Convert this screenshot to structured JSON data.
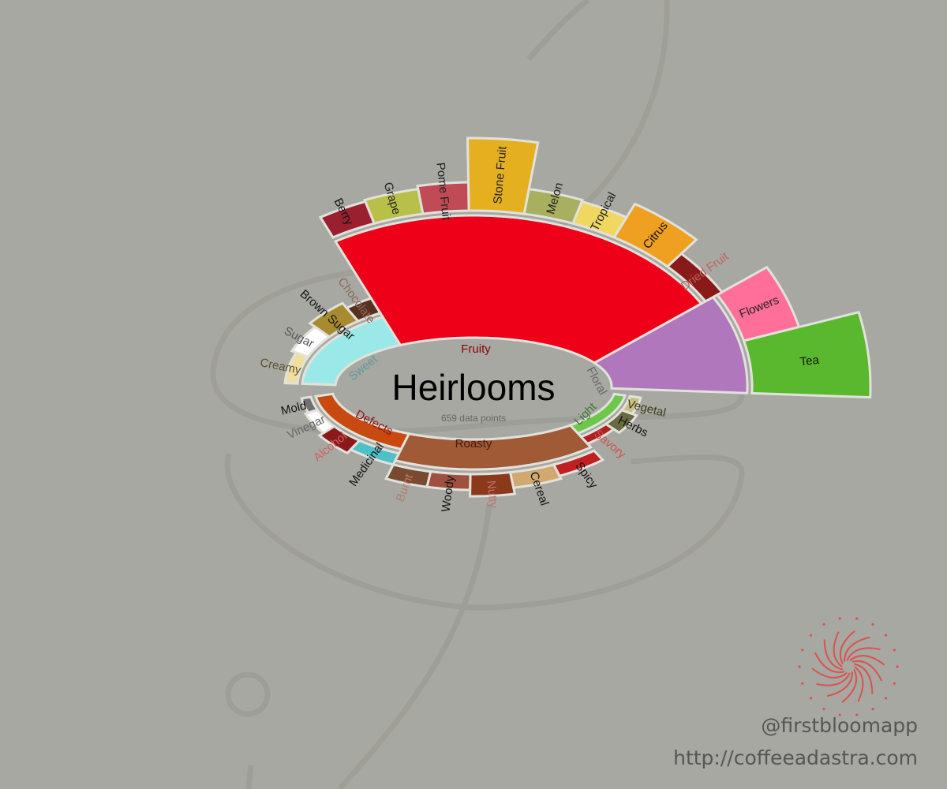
{
  "chart_data": {
    "type": "radial-bar",
    "title": "Heirlooms",
    "subtitle": "659 data points",
    "categories": [
      {
        "name": "Floral",
        "value": 172,
        "color": "#b077bc",
        "label_color": "#666666",
        "children": [
          {
            "name": "Flowers",
            "value": 72,
            "color": "#ff6f9a",
            "label_color": "#222222"
          },
          {
            "name": "Tea",
            "value": 150,
            "color": "#5ab82e",
            "label_color": "#111111"
          }
        ]
      },
      {
        "name": "Fruity",
        "value": 155,
        "color": "#ee0018",
        "label_color": "#8b0000",
        "children": [
          {
            "name": "Dried Fruit",
            "value": 24,
            "color": "#8a1a1a",
            "label_color": "#c06060"
          },
          {
            "name": "Citrus",
            "value": 50,
            "color": "#f0a020",
            "label_color": "#111111"
          },
          {
            "name": "Tropical",
            "value": 30,
            "color": "#f0d860",
            "label_color": "#222222"
          },
          {
            "name": "Melon",
            "value": 32,
            "color": "#a8b060",
            "label_color": "#222222"
          },
          {
            "name": "Stone Fruit",
            "value": 92,
            "color": "#e5b020",
            "label_color": "#222222"
          },
          {
            "name": "Pome Fruit",
            "value": 36,
            "color": "#c04a55",
            "label_color": "#222222"
          },
          {
            "name": "Grape",
            "value": 32,
            "color": "#b8c04a",
            "label_color": "#222222"
          },
          {
            "name": "Berry",
            "value": 30,
            "color": "#9a2030",
            "label_color": "#111111"
          }
        ]
      },
      {
        "name": "Sweet",
        "value": 42,
        "color": "#9ae8e8",
        "label_color": "#5f9a9a",
        "children": [
          {
            "name": "Chocolate",
            "value": 22,
            "color": "#5a3020",
            "label_color": "#8a6a5a"
          },
          {
            "name": "Brown Sugar",
            "value": 30,
            "color": "#a88a30",
            "label_color": "#111111"
          },
          {
            "name": "Sugar",
            "value": 22,
            "color": "#ffffff",
            "label_color": "#555555"
          },
          {
            "name": "Creamy",
            "value": 16,
            "color": "#f0e0a0",
            "label_color": "#5a5030"
          }
        ]
      },
      {
        "name": "Defects",
        "value": 22,
        "color": "#c84a10",
        "label_color": "#8b1010",
        "children": [
          {
            "name": "Mold",
            "value": 12,
            "color": "#707070",
            "label_color": "#111111"
          },
          {
            "name": "Vinegar",
            "value": 16,
            "color": "#ffffff",
            "label_color": "#666666"
          },
          {
            "name": "Alcohol",
            "value": 22,
            "color": "#8a1a1a",
            "label_color": "#d06060"
          },
          {
            "name": "Medicinal",
            "value": 16,
            "color": "#50c0c8",
            "label_color": "#111111"
          }
        ]
      },
      {
        "name": "Roasty",
        "value": 38,
        "color": "#a05a35",
        "label_color": "#4a1a10",
        "children": [
          {
            "name": "Burnt",
            "value": 20,
            "color": "#7a4a30",
            "label_color": "#b08070"
          },
          {
            "name": "Woody",
            "value": 20,
            "color": "#a05040",
            "label_color": "#111111"
          },
          {
            "name": "Nutty",
            "value": 28,
            "color": "#8a3a1a",
            "label_color": "#c07070"
          },
          {
            "name": "Cereal",
            "value": 20,
            "color": "#d0a870",
            "label_color": "#111111"
          },
          {
            "name": "Spicy",
            "value": 16,
            "color": "#c02020",
            "label_color": "#111111"
          }
        ]
      },
      {
        "name": "Light",
        "value": 14,
        "color": "#6cc84a",
        "label_color": "#3a7a2a",
        "children": [
          {
            "name": "Savory",
            "value": 12,
            "color": "#b02020",
            "label_color": "#d05050"
          },
          {
            "name": "Herbs",
            "value": 20,
            "color": "#6a6a40",
            "label_color": "#111111"
          },
          {
            "name": "Vegetal",
            "value": 14,
            "color": "#c8c080",
            "label_color": "#3a3a1a"
          }
        ]
      }
    ]
  },
  "watermark": {
    "handle": "@firstbloomapp",
    "url": "http://coffeeadastra.com",
    "logo_color": "#d9534f"
  }
}
